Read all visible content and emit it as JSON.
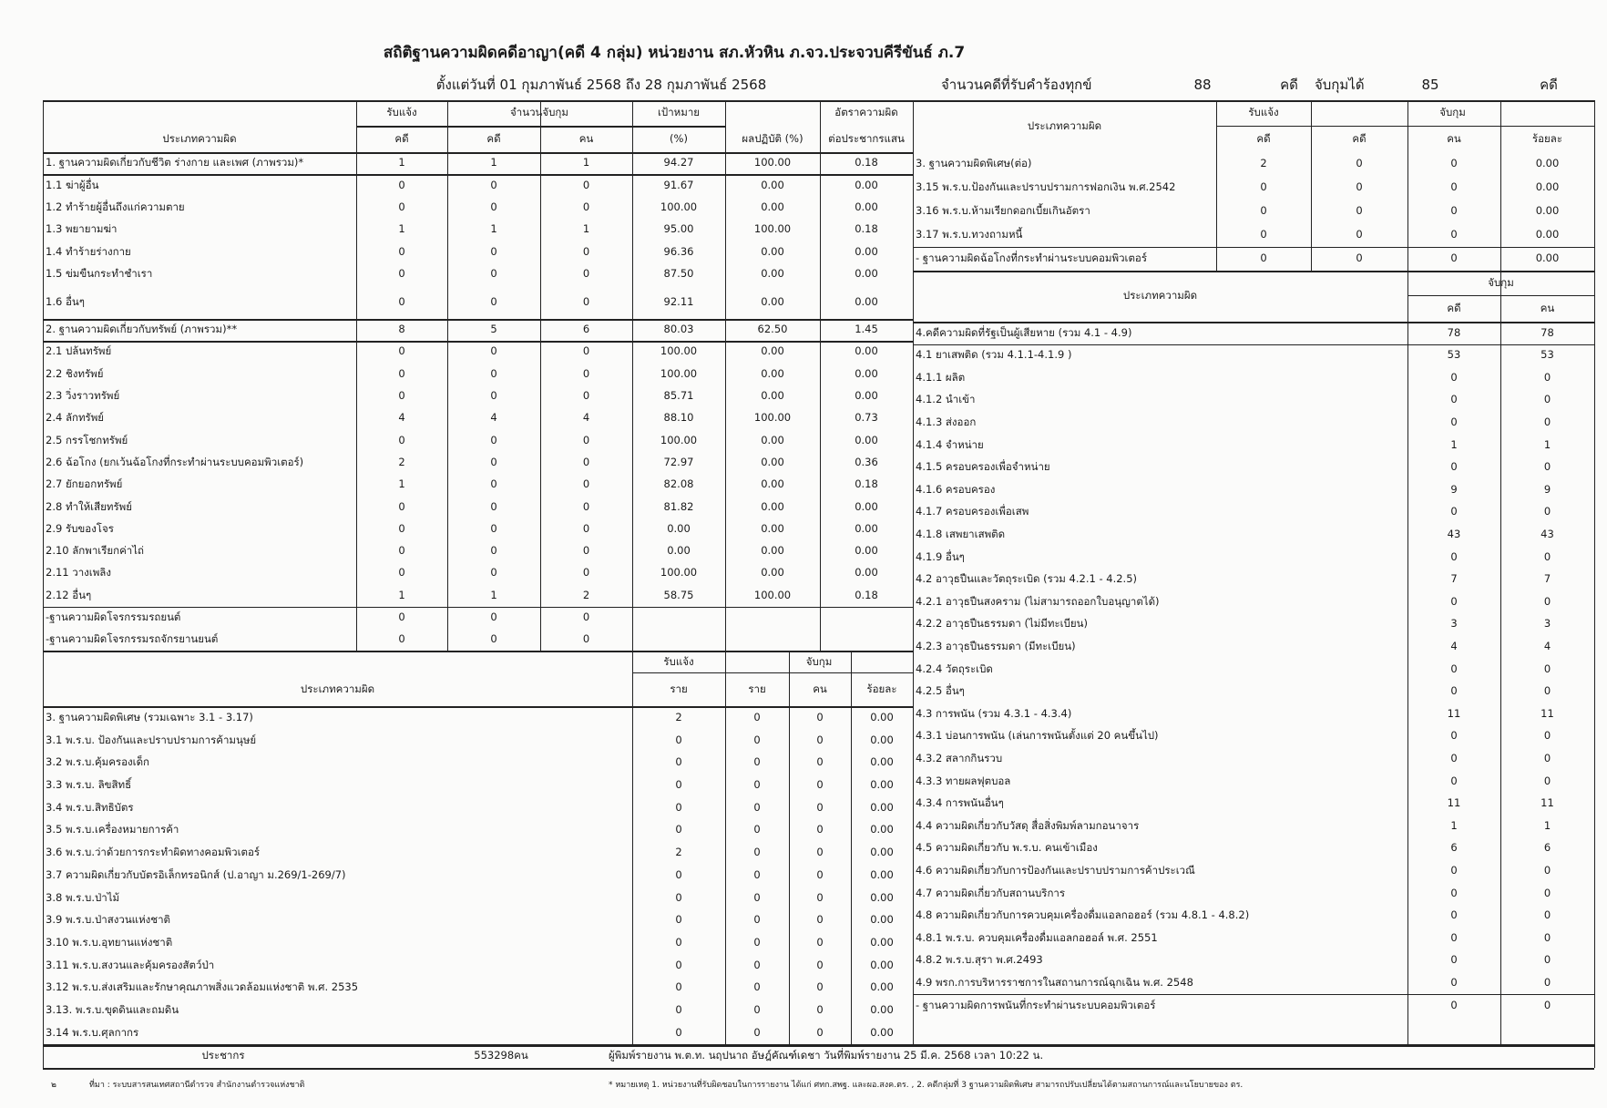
{
  "header": {
    "title": "สถิติฐานความผิดคดีอาญา(คดี 4 กลุ่ม) หน่วยงาน สภ.หัวหิน ภ.จว.ประจวบคีรีขันธ์ ภ.7",
    "period": "ตั้งแต่วันที่ 01 กุมภาพันธ์ 2568 ถึง 28 กุมภาพันธ์ 2568",
    "complaints_label": "จำนวนคดีที่รับคำร้องทุกข์",
    "complaints_value": "88",
    "case_unit": "คดี",
    "arrested_label": "จับกุมได้",
    "arrested_value": "85"
  },
  "left_top": {
    "headers": {
      "type": "ประเภทความผิด",
      "reported": "รับแจ้ง",
      "arrest_count": "จำนวนจับกุม",
      "target": "เป้าหมาย",
      "result": "ผลปฏิบัติ (%)",
      "rate_1": "อัตราความผิด",
      "rate_2": "ต่อประชากรแสน",
      "case": "คดี",
      "person": "คน",
      "percent": "(%)"
    },
    "rows": [
      [
        "1. ฐานความผิดเกี่ยวกับชีวิต ร่างกาย และเพศ (ภาพรวม)*",
        "1",
        "1",
        "1",
        "94.27",
        "100.00",
        "0.18"
      ],
      [
        "1.1 ฆ่าผู้อื่น",
        "0",
        "0",
        "0",
        "91.67",
        "0.00",
        "0.00"
      ],
      [
        "1.2 ทำร้ายผู้อื่นถึงแก่ความตาย",
        "0",
        "0",
        "0",
        "100.00",
        "0.00",
        "0.00"
      ],
      [
        "1.3 พยายามฆ่า",
        "1",
        "1",
        "1",
        "95.00",
        "100.00",
        "0.18"
      ],
      [
        "1.4 ทำร้ายร่างกาย",
        "0",
        "0",
        "0",
        "96.36",
        "0.00",
        "0.00"
      ],
      [
        "1.5 ข่มขืนกระทำชำเรา",
        "0",
        "0",
        "0",
        "87.50",
        "0.00",
        "0.00"
      ],
      [
        "1.6 อื่นๆ",
        "0",
        "0",
        "0",
        "92.11",
        "0.00",
        "0.00"
      ],
      [
        "2. ฐานความผิดเกี่ยวกับทรัพย์ (ภาพรวม)**",
        "8",
        "5",
        "6",
        "80.03",
        "62.50",
        "1.45"
      ],
      [
        "2.1 ปล้นทรัพย์",
        "0",
        "0",
        "0",
        "100.00",
        "0.00",
        "0.00"
      ],
      [
        "2.2 ชิงทรัพย์",
        "0",
        "0",
        "0",
        "100.00",
        "0.00",
        "0.00"
      ],
      [
        "2.3 วิ่งราวทรัพย์",
        "0",
        "0",
        "0",
        "85.71",
        "0.00",
        "0.00"
      ],
      [
        "2.4 ลักทรัพย์",
        "4",
        "4",
        "4",
        "88.10",
        "100.00",
        "0.73"
      ],
      [
        "2.5 กรรโชกทรัพย์",
        "0",
        "0",
        "0",
        "100.00",
        "0.00",
        "0.00"
      ],
      [
        "2.6 ฉ้อโกง (ยกเว้นฉ้อโกงที่กระทำผ่านระบบคอมพิวเตอร์)",
        "2",
        "0",
        "0",
        "72.97",
        "0.00",
        "0.36"
      ],
      [
        "2.7 ยักยอกทรัพย์",
        "1",
        "0",
        "0",
        "82.08",
        "0.00",
        "0.18"
      ],
      [
        "2.8 ทำให้เสียทรัพย์",
        "0",
        "0",
        "0",
        "81.82",
        "0.00",
        "0.00"
      ],
      [
        "2.9 รับของโจร",
        "0",
        "0",
        "0",
        "0.00",
        "0.00",
        "0.00"
      ],
      [
        "2.10 ลักพาเรียกค่าไถ่",
        "0",
        "0",
        "0",
        "0.00",
        "0.00",
        "0.00"
      ],
      [
        "2.11 วางเพลิง",
        "0",
        "0",
        "0",
        "100.00",
        "0.00",
        "0.00"
      ],
      [
        "2.12 อื่นๆ",
        "1",
        "1",
        "2",
        "58.75",
        "100.00",
        "0.18"
      ],
      [
        "-ฐานความผิดโจรกรรมรถยนต์",
        "0",
        "0",
        "0",
        "",
        "",
        ""
      ],
      [
        "-ฐานความผิดโจรกรรมรถจักรยานยนต์",
        "0",
        "0",
        "0",
        "",
        "",
        ""
      ]
    ]
  },
  "left_bottom": {
    "headers": {
      "type": "ประเภทความผิด",
      "reported": "รับแจ้ง",
      "arrested": "จับกุม",
      "item": "ราย",
      "item2": "ราย",
      "person": "คน",
      "percent": "ร้อยละ"
    },
    "rows": [
      [
        "3. ฐานความผิดพิเศษ (รวมเฉพาะ 3.1 - 3.17)",
        "2",
        "0",
        "0",
        "0.00"
      ],
      [
        "3.1 พ.ร.บ. ป้องกันและปราบปรามการค้ามนุษย์",
        "0",
        "0",
        "0",
        "0.00"
      ],
      [
        "3.2 พ.ร.บ.คุ้มครองเด็ก",
        "0",
        "0",
        "0",
        "0.00"
      ],
      [
        "3.3 พ.ร.บ. ลิขสิทธิ์",
        "0",
        "0",
        "0",
        "0.00"
      ],
      [
        "3.4 พ.ร.บ.สิทธิบัตร",
        "0",
        "0",
        "0",
        "0.00"
      ],
      [
        "3.5 พ.ร.บ.เครื่องหมายการค้า",
        "0",
        "0",
        "0",
        "0.00"
      ],
      [
        "3.6 พ.ร.บ.ว่าด้วยการกระทำผิดทางคอมพิวเตอร์",
        "2",
        "0",
        "0",
        "0.00"
      ],
      [
        "3.7 ความผิดเกี่ยวกับบัตรอิเล็กทรอนิกส์  (ป.อาญา ม.269/1-269/7)",
        "0",
        "0",
        "0",
        "0.00"
      ],
      [
        "3.8 พ.ร.บ.ป่าไม้",
        "0",
        "0",
        "0",
        "0.00"
      ],
      [
        "3.9 พ.ร.บ.ป่าสงวนแห่งชาติ",
        "0",
        "0",
        "0",
        "0.00"
      ],
      [
        "3.10 พ.ร.บ.อุทยานแห่งชาติ",
        "0",
        "0",
        "0",
        "0.00"
      ],
      [
        "3.11 พ.ร.บ.สงวนและคุ้มครองสัตว์ป่า",
        "0",
        "0",
        "0",
        "0.00"
      ],
      [
        "3.12 พ.ร.บ.ส่งเสริมและรักษาคุณภาพสิ่งแวดล้อมแห่งชาติ พ.ศ. 2535",
        "0",
        "0",
        "0",
        "0.00"
      ],
      [
        "3.13. พ.ร.บ.ขุดดินและถมดิน",
        "0",
        "0",
        "0",
        "0.00"
      ],
      [
        "3.14 พ.ร.บ.ศุลกากร",
        "0",
        "0",
        "0",
        "0.00"
      ]
    ]
  },
  "right_top": {
    "headers": {
      "type": "ประเภทความผิด",
      "reported": "รับแจ้ง",
      "arrested": "จับกุม",
      "case": "คดี",
      "case2": "คดี",
      "person": "คน",
      "percent": "ร้อยละ"
    },
    "rows": [
      [
        "3. ฐานความผิดพิเศษ(ต่อ)",
        "2",
        "0",
        "0",
        "0.00"
      ],
      [
        "3.15 พ.ร.บ.ป้องกันและปราบปรามการฟอกเงิน พ.ศ.2542",
        "0",
        "0",
        "0",
        "0.00"
      ],
      [
        "3.16 พ.ร.บ.ห้ามเรียกดอกเบี้ยเกินอัตรา",
        "0",
        "0",
        "0",
        "0.00"
      ],
      [
        "3.17 พ.ร.บ.ทวงถามหนี้",
        "0",
        "0",
        "0",
        "0.00"
      ],
      [
        "- ฐานความผิดฉ้อโกงที่กระทำผ่านระบบคอมพิวเตอร์",
        "0",
        "0",
        "0",
        "0.00"
      ]
    ]
  },
  "right_bottom": {
    "headers": {
      "type": "ประเภทความผิด",
      "arrested": "จับกุม",
      "case": "คดี",
      "person": "คน"
    },
    "rows": [
      [
        "4.คดีความผิดที่รัฐเป็นผู้เสียหาย (รวม 4.1 - 4.9)",
        "78",
        "78"
      ],
      [
        "4.1 ยาเสพติด (รวม 4.1.1-4.1.9 )",
        "53",
        "53"
      ],
      [
        "4.1.1 ผลิต",
        "0",
        "0"
      ],
      [
        "4.1.2 นำเข้า",
        "0",
        "0"
      ],
      [
        "4.1.3 ส่งออก",
        "0",
        "0"
      ],
      [
        "4.1.4 จำหน่าย",
        "1",
        "1"
      ],
      [
        "4.1.5 ครอบครองเพื่อจำหน่าย",
        "0",
        "0"
      ],
      [
        "4.1.6 ครอบครอง",
        "9",
        "9"
      ],
      [
        "4.1.7 ครอบครองเพื่อเสพ",
        "0",
        "0"
      ],
      [
        "4.1.8 เสพยาเสพติด",
        "43",
        "43"
      ],
      [
        "4.1.9 อื่นๆ",
        "0",
        "0"
      ],
      [
        "4.2 อาวุธปืนและวัตถุระเบิด (รวม 4.2.1 - 4.2.5)",
        "7",
        "7"
      ],
      [
        "4.2.1 อาวุธปืนสงคราม (ไม่สามารถออกใบอนุญาตได้)",
        "0",
        "0"
      ],
      [
        "4.2.2 อาวุธปืนธรรมดา (ไม่มีทะเบียน)",
        "3",
        "3"
      ],
      [
        "4.2.3 อาวุธปืนธรรมดา (มีทะเบียน)",
        "4",
        "4"
      ],
      [
        "4.2.4 วัตถุระเบิด",
        "0",
        "0"
      ],
      [
        "4.2.5 อื่นๆ",
        "0",
        "0"
      ],
      [
        "4.3 การพนัน (รวม 4.3.1 - 4.3.4)",
        "11",
        "11"
      ],
      [
        "4.3.1 บ่อนการพนัน (เล่นการพนันตั้งแต่ 20 คนขึ้นไป)",
        "0",
        "0"
      ],
      [
        "4.3.2 สลากกินรวบ",
        "0",
        "0"
      ],
      [
        "4.3.3 ทายผลฟุตบอล",
        "0",
        "0"
      ],
      [
        "4.3.4 การพนันอื่นๆ",
        "11",
        "11"
      ],
      [
        "4.4 ความผิดเกี่ยวกับวัสดุ สื่อสิ่งพิมพ์ลามกอนาจาร",
        "1",
        "1"
      ],
      [
        "4.5 ความผิดเกี่ยวกับ พ.ร.บ. คนเข้าเมือง",
        "6",
        "6"
      ],
      [
        "4.6 ความผิดเกี่ยวกับการป้องกันและปราบปรามการค้าประเวณี",
        "0",
        "0"
      ],
      [
        "4.7 ความผิดเกี่ยวกับสถานบริการ",
        "0",
        "0"
      ],
      [
        "4.8 ความผิดเกี่ยวกับการควบคุมเครื่องดื่มแอลกอฮอร์ (รวม 4.8.1 - 4.8.2)",
        "0",
        "0"
      ],
      [
        "4.8.1 พ.ร.บ. ควบคุมเครื่องดื่มแอลกอฮอล์ พ.ศ. 2551",
        "0",
        "0"
      ],
      [
        "4.8.2 พ.ร.บ.สุรา พ.ศ.2493",
        "0",
        "0"
      ],
      [
        "4.9 พรก.การบริหารราชการในสถานการณ์ฉุกเฉิน พ.ศ. 2548",
        "0",
        "0"
      ],
      [
        "- ฐานความผิดการพนันที่กระทำผ่านระบบคอมพิวเตอร์",
        "0",
        "0"
      ]
    ]
  },
  "footer": {
    "population_label": "ประชากร",
    "population_value": "553298คน",
    "printed_by": "ผู้พิมพ์รายงาน พ.ต.ท. นฤปนาถ อัษฎ์คัณฑ์เดชา วันที่พิมพ์รายงาน 25 มี.ค. 2568  เวลา 10:22 น.",
    "page_mark": "๒",
    "source": "ที่มา : ระบบสารสนเทศสถานีตำรวจ  สำนักงานตำรวจแห่งชาติ",
    "note": "* หมายเหตุ   1. หน่วยงานที่รับผิดชอบในการรายงาน ได้แก่ ศทก.สพฐ. และผอ.สงค.ตร. , 2. คดีกลุ่มที่ 3 ฐานความผิดพิเศษ สามารถปรับเปลี่ยนได้ตามสถานการณ์และนโยบายของ ตร."
  }
}
